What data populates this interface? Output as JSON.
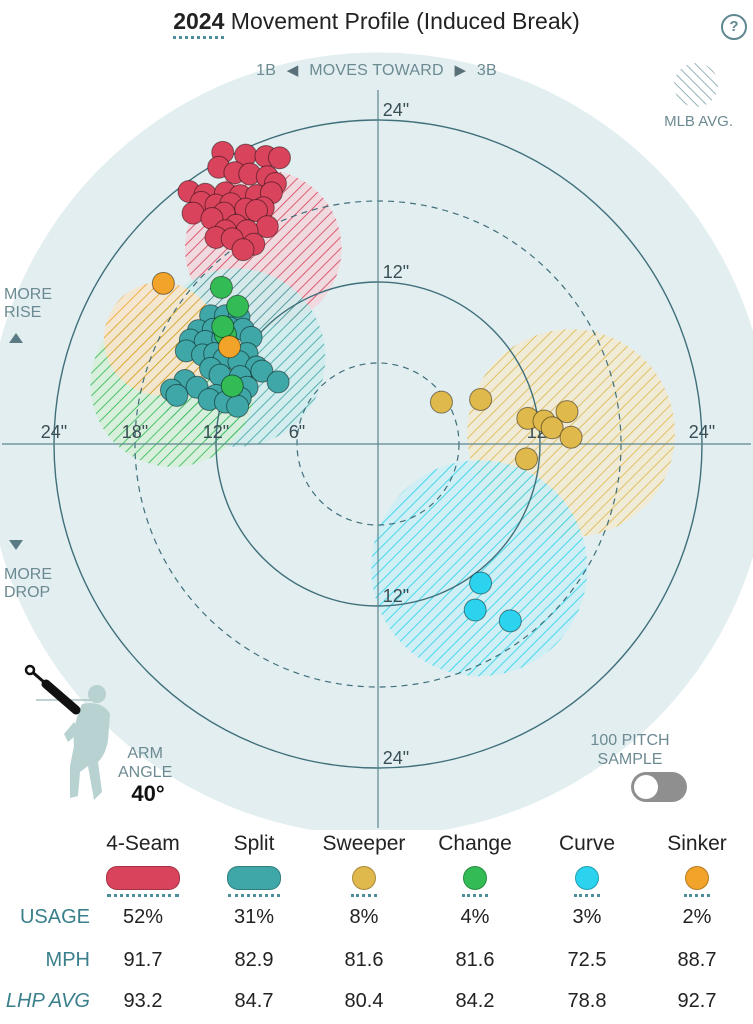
{
  "header": {
    "year": "2024",
    "title": "Movement Profile (Induced Break)",
    "help": "?"
  },
  "direction": {
    "left": "1B",
    "middle": "MOVES TOWARD",
    "right": "3B"
  },
  "legend": {
    "mlb_avg": "MLB AVG."
  },
  "vertical_labels": {
    "rise_line1": "MORE",
    "rise_line2": "RISE",
    "drop_line1": "MORE",
    "drop_line2": "DROP"
  },
  "arm": {
    "label_line1": "ARM",
    "label_line2": "ANGLE",
    "value": "40°"
  },
  "sample": {
    "label_line1": "100 PITCH",
    "label_line2": "SAMPLE"
  },
  "table": {
    "row_labels": [
      "USAGE",
      "MPH",
      "LHP AVG"
    ],
    "pitches": [
      {
        "name": "4-Seam",
        "usage": "52%",
        "mph": "91.7",
        "lhp_avg": "93.2",
        "color": "#d9445c",
        "shape": "pill",
        "underline": true
      },
      {
        "name": "Split",
        "usage": "31%",
        "mph": "82.9",
        "lhp_avg": "84.7",
        "color": "#3fa7a7",
        "shape": "pill",
        "underline": true
      },
      {
        "name": "Sweeper",
        "usage": "8%",
        "mph": "81.6",
        "lhp_avg": "80.4",
        "color": "#e0b94d",
        "shape": "dot",
        "underline": true
      },
      {
        "name": "Change",
        "usage": "4%",
        "mph": "81.6",
        "lhp_avg": "84.2",
        "color": "#33bb55",
        "shape": "dot",
        "underline": true
      },
      {
        "name": "Curve",
        "usage": "3%",
        "mph": "72.5",
        "lhp_avg": "78.8",
        "color": "#2bd3ee",
        "shape": "dot",
        "underline": true
      },
      {
        "name": "Sinker",
        "usage": "2%",
        "mph": "88.7",
        "lhp_avg": "92.7",
        "color": "#f2a42a",
        "shape": "dot",
        "underline": true
      }
    ]
  },
  "chart_data": {
    "type": "scatter",
    "axis_unit": "inches",
    "range": 29,
    "ring_labels_h": [
      "24\"",
      "18\"",
      "12\"",
      "6\"",
      "12\"",
      "24\""
    ],
    "ring_label_h_values": [
      -24,
      -18,
      -12,
      -6,
      12,
      24
    ],
    "ring_labels_v": [
      "24\"",
      "12\"",
      "12\"",
      "24\""
    ],
    "ring_label_v_values": [
      24,
      12,
      -12,
      -24
    ],
    "solid_rings": [
      12,
      24
    ],
    "dashed_rings": [
      6,
      18
    ],
    "mlb_avg": [
      {
        "pitch": "4-Seam",
        "x": -8.5,
        "y": 14.5,
        "r": 5.8
      },
      {
        "pitch": "Split",
        "x": -10.5,
        "y": 6.4,
        "r": 6.6
      },
      {
        "pitch": "Sweeper",
        "x": 14.3,
        "y": 0.8,
        "r": 7.7
      },
      {
        "pitch": "Change",
        "x": -15.2,
        "y": 4.4,
        "r": 6.1
      },
      {
        "pitch": "Curve",
        "x": 7.5,
        "y": -9.2,
        "r": 8.0
      },
      {
        "pitch": "Sinker",
        "x": -16.1,
        "y": 7.8,
        "r": 4.2
      }
    ],
    "series": [
      {
        "name": "4-Seam",
        "color": "#d9445c",
        "points": [
          [
            -11.5,
            21.6
          ],
          [
            -9.8,
            21.4
          ],
          [
            -8.3,
            21.3
          ],
          [
            -7.3,
            21.2
          ],
          [
            -11.8,
            20.5
          ],
          [
            -10.6,
            20.1
          ],
          [
            -9.5,
            20.0
          ],
          [
            -8.2,
            19.8
          ],
          [
            -7.6,
            19.3
          ],
          [
            -14.0,
            18.7
          ],
          [
            -12.8,
            18.5
          ],
          [
            -11.3,
            18.6
          ],
          [
            -10.2,
            18.4
          ],
          [
            -9.0,
            18.4
          ],
          [
            -7.9,
            18.6
          ],
          [
            -13.1,
            17.9
          ],
          [
            -12.0,
            17.7
          ],
          [
            -10.9,
            17.8
          ],
          [
            -9.8,
            17.4
          ],
          [
            -8.5,
            17.5
          ],
          [
            -13.7,
            17.1
          ],
          [
            -11.4,
            17.1
          ],
          [
            -9.0,
            17.3
          ],
          [
            -12.3,
            16.7
          ],
          [
            -10.5,
            16.2
          ],
          [
            -8.2,
            16.1
          ],
          [
            -11.3,
            15.8
          ],
          [
            -9.7,
            15.8
          ],
          [
            -12.0,
            15.3
          ],
          [
            -10.8,
            15.2
          ],
          [
            -9.2,
            14.8
          ],
          [
            -10.0,
            14.4
          ]
        ]
      },
      {
        "name": "Split",
        "color": "#3fa7a7",
        "points": [
          [
            -12.4,
            9.5
          ],
          [
            -11.3,
            9.5
          ],
          [
            -10.3,
            9.4
          ],
          [
            -13.3,
            8.4
          ],
          [
            -12.2,
            8.5
          ],
          [
            -11.0,
            8.6
          ],
          [
            -10.0,
            8.5
          ],
          [
            -13.9,
            7.7
          ],
          [
            -12.8,
            7.6
          ],
          [
            -11.5,
            7.8
          ],
          [
            -9.4,
            7.9
          ],
          [
            -14.2,
            6.9
          ],
          [
            -13.0,
            6.6
          ],
          [
            -12.1,
            6.7
          ],
          [
            -10.8,
            6.8
          ],
          [
            -9.7,
            6.7
          ],
          [
            -11.4,
            6.3
          ],
          [
            -10.3,
            6.1
          ],
          [
            -12.4,
            5.6
          ],
          [
            -9.0,
            5.7
          ],
          [
            -11.7,
            5.1
          ],
          [
            -10.2,
            5.0
          ],
          [
            -8.6,
            5.4
          ],
          [
            -14.3,
            4.7
          ],
          [
            -15.3,
            4.0
          ],
          [
            -13.4,
            4.2
          ],
          [
            -10.8,
            4.2
          ],
          [
            -9.7,
            4.2
          ],
          [
            -7.4,
            4.6
          ],
          [
            -14.9,
            3.6
          ],
          [
            -12.0,
            3.6
          ],
          [
            -10.2,
            3.4
          ],
          [
            -12.5,
            3.3
          ],
          [
            -11.3,
            3.1
          ],
          [
            -10.4,
            2.8
          ]
        ]
      },
      {
        "name": "Sweeper",
        "color": "#e0b94d",
        "points": [
          [
            4.7,
            3.1
          ],
          [
            7.6,
            3.3
          ],
          [
            11.1,
            1.9
          ],
          [
            14.0,
            2.4
          ],
          [
            12.3,
            1.7
          ],
          [
            12.9,
            1.2
          ],
          [
            14.3,
            0.5
          ],
          [
            11.0,
            -1.1
          ]
        ]
      },
      {
        "name": "Change",
        "color": "#33bb55",
        "points": [
          [
            -11.3,
            8.1
          ],
          [
            -11.5,
            8.7
          ],
          [
            -10.4,
            10.2
          ],
          [
            -11.6,
            11.6
          ],
          [
            -10.8,
            4.3
          ]
        ]
      },
      {
        "name": "Curve",
        "color": "#2bd3ee",
        "points": [
          [
            7.6,
            -10.3
          ],
          [
            7.2,
            -12.3
          ],
          [
            9.8,
            -13.1
          ]
        ]
      },
      {
        "name": "Sinker",
        "color": "#f2a42a",
        "points": [
          [
            -15.9,
            11.9
          ],
          [
            -11.0,
            7.2
          ]
        ]
      }
    ]
  }
}
